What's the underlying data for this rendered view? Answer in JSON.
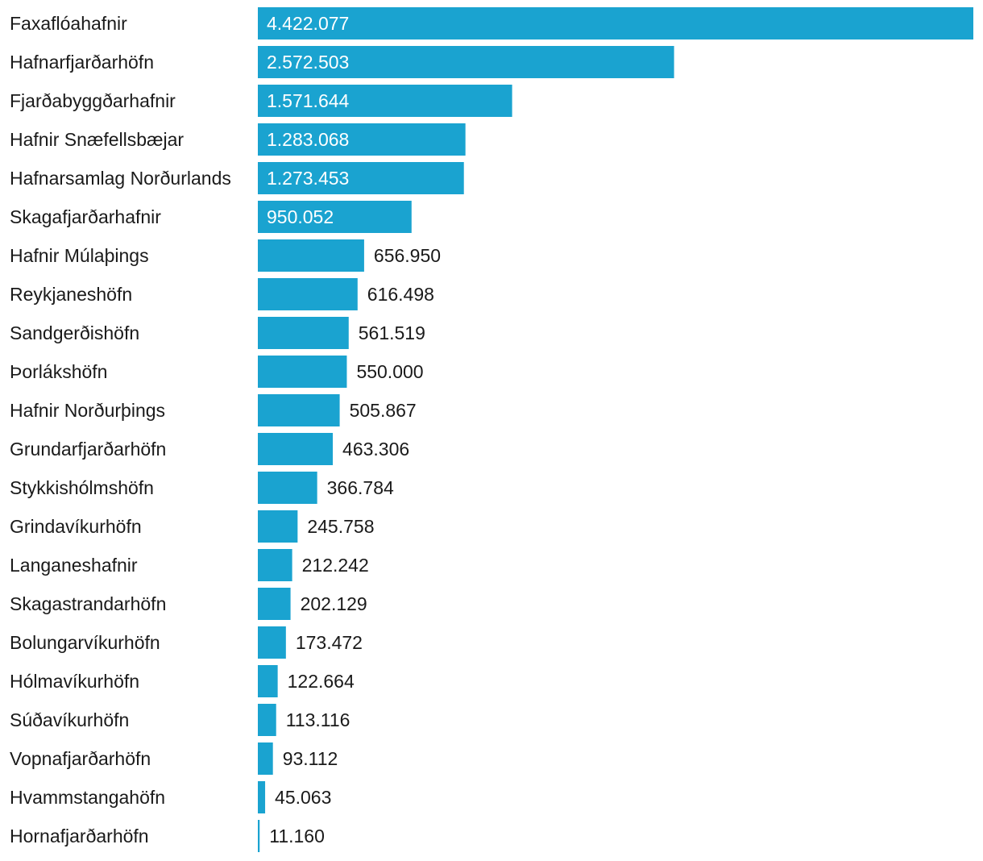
{
  "chart_data": {
    "type": "bar",
    "orientation": "horizontal",
    "title": "",
    "xlabel": "",
    "ylabel": "",
    "xlim": [
      0,
      4422077
    ],
    "grid": false,
    "legend": "none",
    "bar_color": "#1aa3d0",
    "label_inside_color": "#ffffff",
    "label_outside_color": "#1a1a1a",
    "categories": [
      "Faxaflóahafnir",
      "Hafnarfjarðarhöfn",
      "Fjarðabyggðarhafnir",
      "Hafnir Snæfellsbæjar",
      "Hafnarsamlag Norðurlands",
      "Skagafjarðarhafnir",
      "Hafnir Múlaþings",
      "Reykjaneshöfn",
      "Sandgerðishöfn",
      "Þorlákshöfn",
      "Hafnir Norðurþings",
      "Grundarfjarðarhöfn",
      "Stykkishólmshöfn",
      "Grindavíkurhöfn",
      "Langaneshafnir",
      "Skagastrandarhöfn",
      "Bolungarvíkurhöfn",
      "Hólmavíkurhöfn",
      "Súðavíkurhöfn",
      "Vopnafjarðarhöfn",
      "Hvammstangahöfn",
      "Hornafjarðarhöfn"
    ],
    "values": [
      4422077,
      2572503,
      1571644,
      1283068,
      1273453,
      950052,
      656950,
      616498,
      561519,
      550000,
      505867,
      463306,
      366784,
      245758,
      212242,
      202129,
      173472,
      122664,
      113116,
      93112,
      45063,
      11160
    ],
    "value_labels": [
      "4.422.077",
      "2.572.503",
      "1.571.644",
      "1.283.068",
      "1.273.453",
      "950.052",
      "656.950",
      "616.498",
      "561.519",
      "550.000",
      "505.867",
      "463.306",
      "366.784",
      "245.758",
      "212.242",
      "202.129",
      "173.472",
      "122.664",
      "113.116",
      "93.112",
      "45.063",
      "11.160"
    ]
  }
}
